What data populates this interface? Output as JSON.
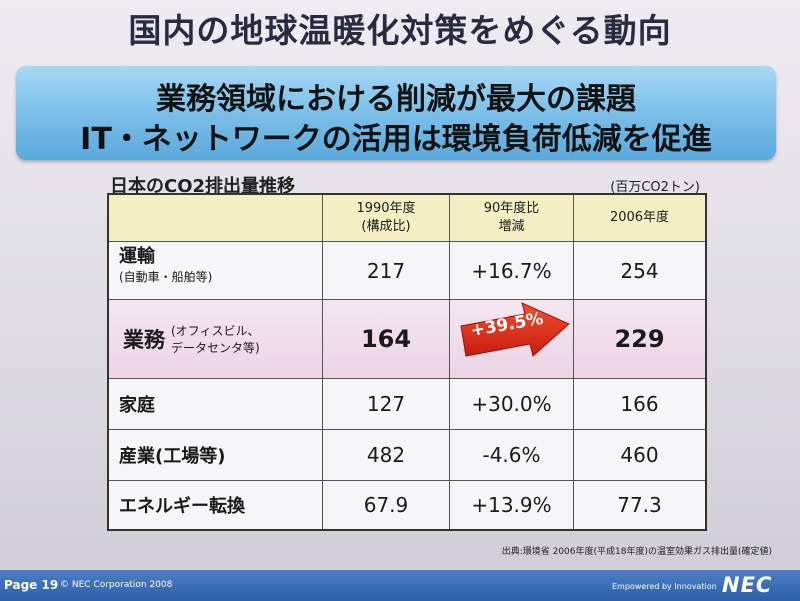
{
  "slide": {
    "title": "国内の地球温暖化対策をめぐる動向",
    "banner_line1": "業務領域における削減が最大の課題",
    "banner_line2": "IT・ネットワークの活用は環境負荷低減を促進"
  },
  "table": {
    "caption": "日本のCO2排出量推移",
    "unit": "(百万CO2トン)",
    "headers": {
      "col2_line1": "1990年度",
      "col2_line2": "(構成比)",
      "col3_line1": "90年度比",
      "col3_line2": "増減",
      "col4": "2006年度"
    },
    "rows": [
      {
        "label": "運輸",
        "sub": "(自動車・船舶等)",
        "v1990": "217",
        "change": "+16.7%",
        "v2006": "254"
      },
      {
        "label": "業務",
        "sub_line1": "(オフィスビル、",
        "sub_line2": "データセンタ等)",
        "v1990": "164",
        "change": "+39.5%",
        "v2006": "229"
      },
      {
        "label": "家庭",
        "v1990": "127",
        "change": "+30.0%",
        "v2006": "166"
      },
      {
        "label": "産業(工場等)",
        "v1990": "482",
        "change": "-4.6%",
        "v2006": "460"
      },
      {
        "label": "エネルギー転換",
        "v1990": "67.9",
        "change": "+13.9%",
        "v2006": "77.3"
      }
    ]
  },
  "source": "出典:環境省 2006年度(平成18年度)の温室効果ガス排出量(確定値)",
  "footer": {
    "page": "Page 19",
    "copyright": "© NEC Corporation 2008",
    "tagline": "Empowered by Innovation",
    "logo": "NEC"
  },
  "colors": {
    "banner": "#7fc1ea",
    "header_row": "#f3efc2",
    "highlight_row": "#ecd3e4",
    "arrow": "#e8321e",
    "footer": "#2c5fa9"
  },
  "icons": {
    "arrow": "red-right-arrow-icon"
  }
}
